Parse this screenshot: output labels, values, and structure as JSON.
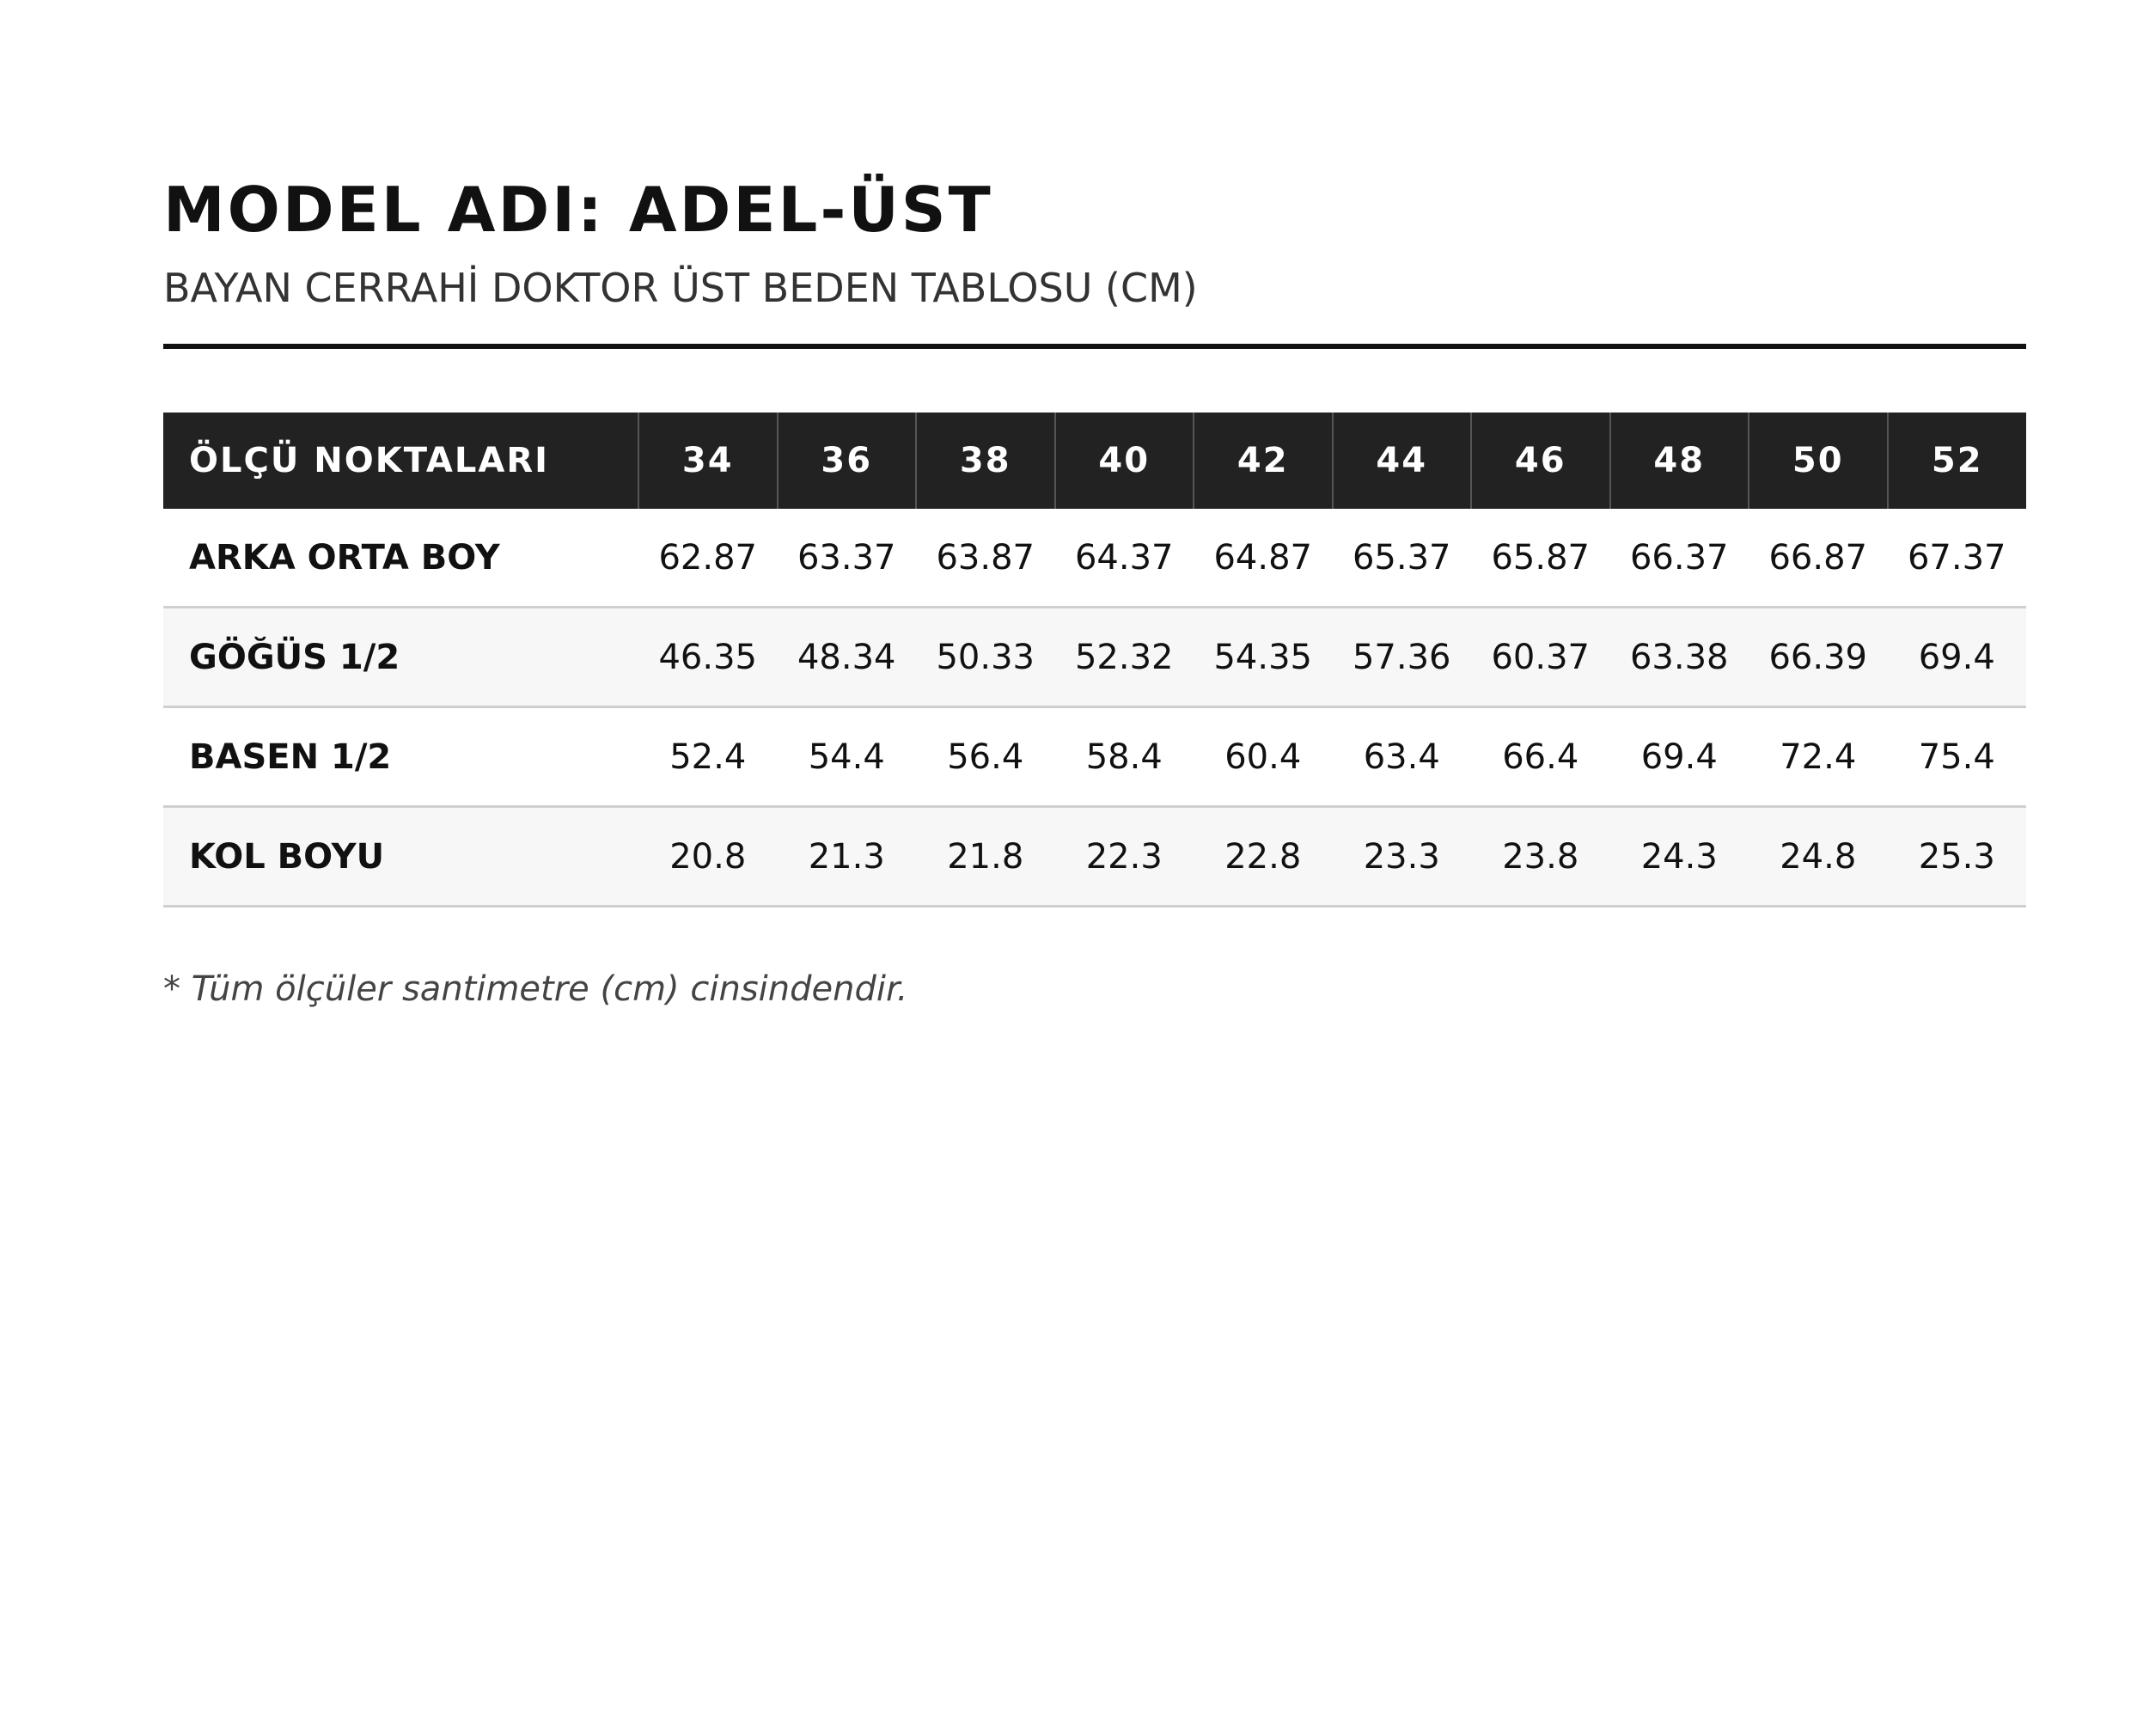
{
  "header": {
    "title": "MODEL ADI: ADEL-ÜST",
    "subtitle": "BAYAN CERRAHİ DOKTOR ÜST BEDEN TABLOSU (CM)"
  },
  "table": {
    "columns": [
      "ÖLÇÜ NOKTALARI",
      "34",
      "36",
      "38",
      "40",
      "42",
      "44",
      "46",
      "48",
      "50",
      "52"
    ],
    "rows": [
      [
        "ARKA ORTA BOY",
        "62.87",
        "63.37",
        "63.87",
        "64.37",
        "64.87",
        "65.37",
        "65.87",
        "66.37",
        "66.87",
        "67.37"
      ],
      [
        "GÖĞÜS 1/2",
        "46.35",
        "48.34",
        "50.33",
        "52.32",
        "54.35",
        "57.36",
        "60.37",
        "63.38",
        "66.39",
        "69.4"
      ],
      [
        "BASEN 1/2",
        "52.4",
        "54.4",
        "56.4",
        "58.4",
        "60.4",
        "63.4",
        "66.4",
        "69.4",
        "72.4",
        "75.4"
      ],
      [
        "KOL BOYU",
        "20.8",
        "21.3",
        "21.8",
        "22.3",
        "22.8",
        "23.3",
        "23.8",
        "24.3",
        "24.8",
        "25.3"
      ]
    ]
  },
  "footnote": "* Tüm ölçüler santimetre (cm) cinsindendir."
}
